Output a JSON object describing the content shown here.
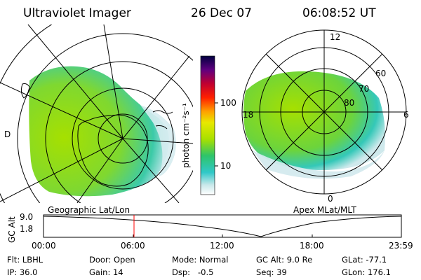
{
  "header": {
    "instrument": "Ultraviolet Imager",
    "date": "26 Dec 07",
    "time": "06:08:52 UT"
  },
  "colorbar": {
    "unit_label": "photon cm⁻²s⁻¹",
    "ticks": [
      "100",
      "10"
    ],
    "scale": "log"
  },
  "left_map": {
    "label": "Geographic Lat/Lon",
    "edge_mark": "D"
  },
  "right_map": {
    "label": "Apex MLat/MLT",
    "mlt_labels": [
      "12",
      "18",
      "6",
      "0"
    ],
    "lat_labels": [
      "60",
      "70",
      "80"
    ]
  },
  "altitude_plot": {
    "ylabel": "GC Alt",
    "y_ticks": [
      "9.0",
      "1.8"
    ],
    "x_ticks": [
      "00:00",
      "06:00",
      "12:00",
      "18:00",
      "23:59"
    ],
    "marker_time": "06:08:52",
    "curve_color": "#000000",
    "marker_color": "#ff0000"
  },
  "status": {
    "flt": "Flt: LBHL",
    "door": "Door: Open",
    "mode": "Mode: Normal",
    "gc_alt": "GC Alt: 9.0 Re",
    "glat": "GLat: -77.1",
    "ip": "IP: 36.0",
    "gain": "Gain: 14",
    "dsp": "Dsp:   -0.5",
    "seq": "Seq: 39",
    "glon": "GLon: 176.1"
  },
  "colors": {
    "aurora_green": "#a6e000",
    "aurora_bright": "#5fd02a",
    "aurora_cyan": "#2fc8c8",
    "aurora_faint": "#b8e4e8"
  }
}
